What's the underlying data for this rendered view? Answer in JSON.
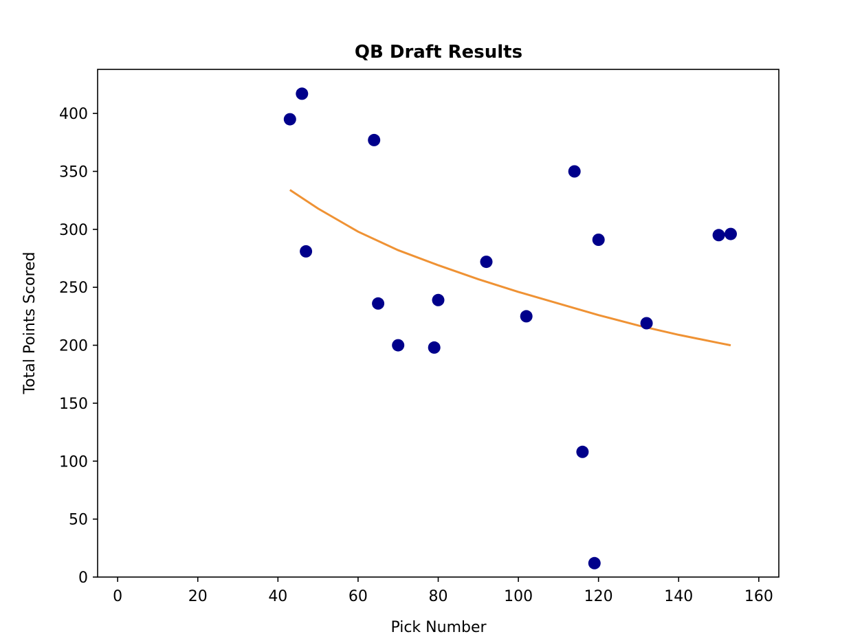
{
  "chart_data": {
    "type": "scatter",
    "title": "QB Draft Results",
    "xlabel": "Pick Number",
    "ylabel": "Total Points Scored",
    "xlim": [
      -5,
      165
    ],
    "ylim": [
      0,
      438
    ],
    "xticks": [
      0,
      20,
      40,
      60,
      80,
      100,
      120,
      140,
      160
    ],
    "yticks": [
      0,
      50,
      100,
      150,
      200,
      250,
      300,
      350,
      400
    ],
    "grid": false,
    "legend": "none",
    "series": [
      {
        "kind": "scatter",
        "color": "#00008b",
        "points": [
          [
            43,
            395
          ],
          [
            46,
            417
          ],
          [
            47,
            281
          ],
          [
            64,
            377
          ],
          [
            65,
            236
          ],
          [
            70,
            200
          ],
          [
            79,
            198
          ],
          [
            80,
            239
          ],
          [
            92,
            272
          ],
          [
            102,
            225
          ],
          [
            114,
            350
          ],
          [
            116,
            108
          ],
          [
            119,
            12
          ],
          [
            120,
            291
          ],
          [
            132,
            219
          ],
          [
            150,
            295
          ],
          [
            153,
            296
          ]
        ]
      },
      {
        "kind": "line",
        "color": "#ef9234",
        "points": [
          [
            43,
            334
          ],
          [
            50,
            318
          ],
          [
            60,
            298
          ],
          [
            70,
            282
          ],
          [
            80,
            269
          ],
          [
            90,
            257
          ],
          [
            100,
            246
          ],
          [
            110,
            236
          ],
          [
            120,
            226
          ],
          [
            130,
            217
          ],
          [
            140,
            209
          ],
          [
            150,
            202
          ],
          [
            153,
            200
          ]
        ]
      }
    ]
  }
}
